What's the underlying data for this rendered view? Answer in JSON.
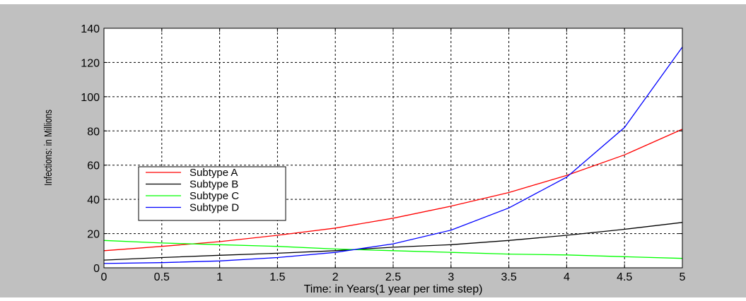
{
  "chart_data": {
    "type": "line",
    "title": "",
    "xlabel": "Time: in Years(1 year per time step)",
    "ylabel": "Infections: in Millions",
    "xlim": [
      0,
      5
    ],
    "ylim": [
      0,
      140
    ],
    "xticks": [
      0,
      0.5,
      1,
      1.5,
      2,
      2.5,
      3,
      3.5,
      4,
      4.5,
      5
    ],
    "yticks": [
      0,
      20,
      40,
      60,
      80,
      100,
      120,
      140
    ],
    "xtick_labels": [
      "0",
      "0.5",
      "1",
      "1.5",
      "2",
      "2.5",
      "3",
      "3.5",
      "4",
      "4.5",
      "5"
    ],
    "ytick_labels": [
      "0",
      "20",
      "40",
      "60",
      "80",
      "100",
      "120",
      "140"
    ],
    "grid": true,
    "grid_style": "dashed",
    "legend_position": "middle-left",
    "x": [
      0,
      0.5,
      1,
      1.5,
      2,
      2.5,
      3,
      3.5,
      4,
      4.5,
      5
    ],
    "series": [
      {
        "name": "Subtype A",
        "color": "#ff0000",
        "values": [
          10,
          12.5,
          15.3,
          19,
          23.2,
          29,
          36,
          44,
          54,
          66,
          81
        ]
      },
      {
        "name": "Subtype B",
        "color": "#000000",
        "values": [
          4.5,
          6,
          7.3,
          8.5,
          10,
          12,
          13.5,
          16,
          19,
          22.5,
          26.5
        ]
      },
      {
        "name": "Subtype C",
        "color": "#00ff00",
        "values": [
          16,
          14.5,
          13.5,
          12.5,
          11,
          10,
          9,
          8,
          7.5,
          6.5,
          5.5
        ]
      },
      {
        "name": "Subtype D",
        "color": "#0000ff",
        "values": [
          2.5,
          3,
          4,
          6,
          9,
          14,
          22,
          35,
          53,
          82,
          129
        ]
      }
    ]
  }
}
